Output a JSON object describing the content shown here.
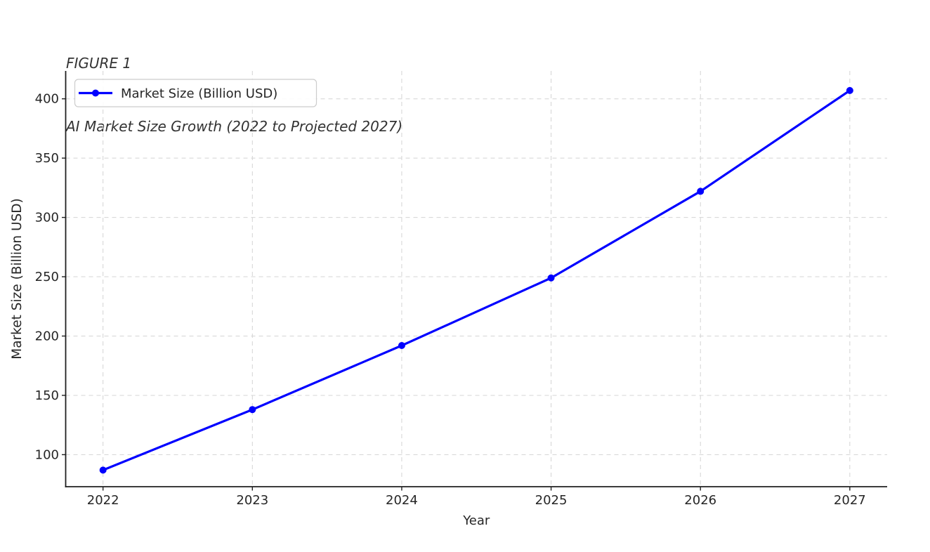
{
  "chart_data": {
    "type": "line",
    "title": "FIGURE 1",
    "subtitle": "AI Market Size Growth (2022 to Projected 2027)",
    "x": [
      2022,
      2023,
      2024,
      2025,
      2026,
      2027
    ],
    "series": [
      {
        "name": "Market Size (Billion USD)",
        "values": [
          87,
          138,
          192,
          249,
          322,
          407
        ],
        "color": "#0000ff",
        "marker": "circle",
        "line_width": 3.2
      }
    ],
    "xlabel": "Year",
    "ylabel": "Market Size (Billion USD)",
    "legend": {
      "entries": [
        "Market Size (Billion USD)"
      ],
      "position": "upper left"
    },
    "xlim": [
      2021.75,
      2027.25
    ],
    "ylim": [
      73,
      423.5
    ],
    "xticks": [
      2022,
      2023,
      2024,
      2025,
      2026,
      2027
    ],
    "yticks": [
      100,
      150,
      200,
      250,
      300,
      350,
      400
    ],
    "grid": true,
    "grid_style": "dashed",
    "colors": {
      "line": "#0000ff",
      "grid": "#d4d4d4",
      "spine": "#1f1f1f",
      "tick_text": "#262626",
      "title_text": "#333333",
      "legend_border": "#cccccc",
      "background": "#ffffff"
    }
  }
}
